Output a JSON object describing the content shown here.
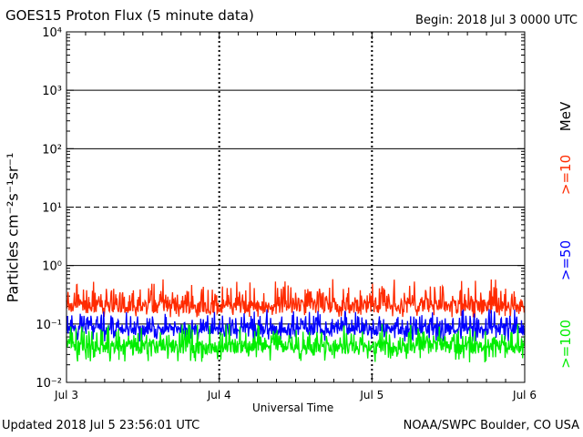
{
  "header": {
    "title": "GOES15 Proton Flux (5 minute data)",
    "begin": "Begin: 2018 Jul 3 0000 UTC"
  },
  "footer": {
    "updated": "Updated 2018 Jul  5 23:56:01 UTC",
    "credit": "NOAA/SWPC Boulder, CO USA"
  },
  "colors": {
    "ge10": "#ff2a00",
    "ge50": "#0000ff",
    "ge100": "#00ee00",
    "axis": "#000000"
  },
  "chart_data": {
    "type": "line",
    "title": "GOES15 Proton Flux (5 minute data)",
    "xlabel": "Universal Time",
    "ylabel": "Particles cm⁻²s⁻¹sr⁻¹",
    "yscale": "log",
    "ylim": [
      0.01,
      10000
    ],
    "y_ticks": [
      {
        "value": 0.01,
        "label": "10⁻²"
      },
      {
        "value": 0.1,
        "label": "10⁻¹"
      },
      {
        "value": 1,
        "label": "10⁰"
      },
      {
        "value": 10,
        "label": "10¹"
      },
      {
        "value": 100,
        "label": "10²"
      },
      {
        "value": 1000,
        "label": "10³"
      },
      {
        "value": 10000,
        "label": "10⁴"
      }
    ],
    "x_ticks": [
      "Jul 3",
      "Jul 4",
      "Jul 5",
      "Jul 6"
    ],
    "xlim": [
      "2018-07-03",
      "2018-07-06"
    ],
    "unit_label": "MeV",
    "series": [
      {
        "name": ">=10",
        "color": "#ff2a00",
        "typical_flux": 0.2,
        "range": [
          0.13,
          0.6
        ]
      },
      {
        "name": ">=50",
        "color": "#0000ff",
        "typical_flux": 0.08,
        "range": [
          0.05,
          0.18
        ]
      },
      {
        "name": ">=100",
        "color": "#00ee00",
        "typical_flux": 0.04,
        "range": [
          0.022,
          0.1
        ]
      }
    ]
  }
}
